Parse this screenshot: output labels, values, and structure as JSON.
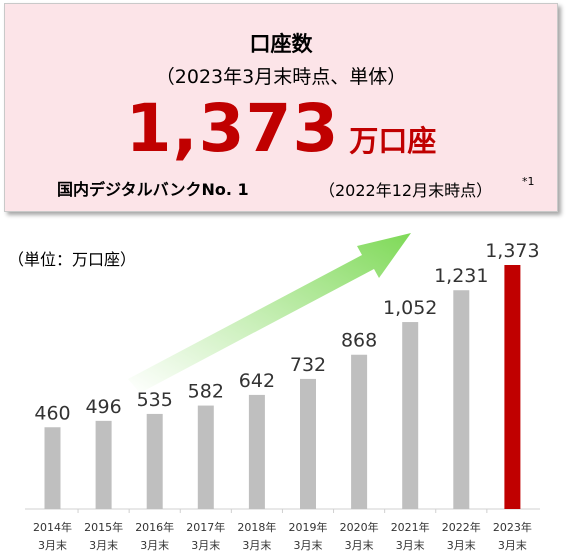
{
  "headline": {
    "title": "口座数",
    "subtitle": "（2023年3月末時点、単体）",
    "number": "1,373",
    "unit": "万口座",
    "rank": "国内デジタルバンクNo. 1",
    "rank_note": "（2022年12月末時点）",
    "footnote": "*1"
  },
  "unit_label": "（単位：万口座）",
  "colors": {
    "bar": "#bfbfbf",
    "highlight_bar": "#c00000",
    "arrow": "#7ed957",
    "headline_number": "#c00000"
  },
  "chart_data": {
    "type": "bar",
    "categories": [
      [
        "2014年",
        "3月末"
      ],
      [
        "2015年",
        "3月末"
      ],
      [
        "2016年",
        "3月末"
      ],
      [
        "2017年",
        "3月末"
      ],
      [
        "2018年",
        "3月末"
      ],
      [
        "2019年",
        "3月末"
      ],
      [
        "2020年",
        "3月末"
      ],
      [
        "2021年",
        "3月末"
      ],
      [
        "2022年",
        "3月末"
      ],
      [
        "2023年",
        "3月末"
      ]
    ],
    "values": [
      460,
      496,
      535,
      582,
      642,
      732,
      868,
      1052,
      1231,
      1373
    ],
    "value_labels": [
      "460",
      "496",
      "535",
      "582",
      "642",
      "732",
      "868",
      "1,052",
      "1,231",
      "1,373"
    ],
    "highlight_index": 9,
    "ylim": [
      0,
      1373
    ],
    "ylabel": "万口座",
    "grid": false,
    "legend": "none"
  }
}
